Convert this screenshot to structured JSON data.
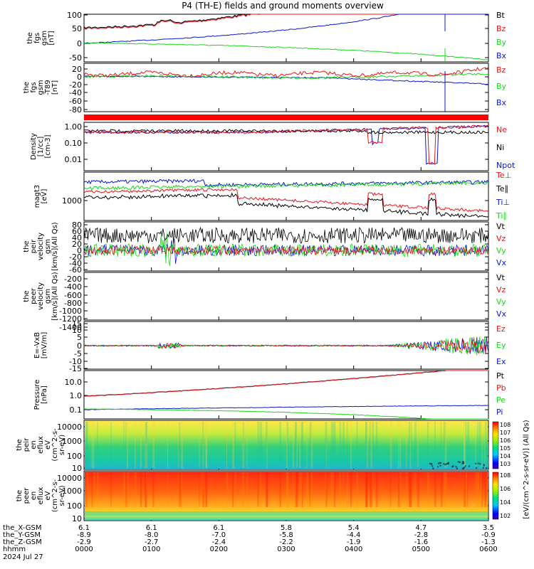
{
  "chart_data": {
    "type": "line",
    "title": "P4 (TH-E) fields and ground moments overview",
    "colors": {
      "black": "#000000",
      "red": "#e8141a",
      "green": "#18d818",
      "blue": "#0a16d0",
      "bar": "#ff0000"
    },
    "panels": [
      {
        "id": "p1",
        "ylabel": [
          "the",
          "fgs",
          "gsm",
          "[nT]"
        ],
        "ticks": [
          "100",
          "50",
          "0",
          "-50"
        ],
        "legend": [
          {
            "t": "Bt",
            "c": "black"
          },
          {
            "t": "Bz",
            "c": "red"
          },
          {
            "t": "By",
            "c": "green"
          },
          {
            "t": "Bx",
            "c": "blue"
          }
        ]
      },
      {
        "id": "p2",
        "ylabel": [
          "the",
          "fgs",
          "gsm",
          "-T89",
          "[nT]"
        ],
        "ticks": [
          "20",
          "0",
          "-20",
          "-40",
          "-60",
          "-80"
        ],
        "legend": [
          {
            "t": "Bz",
            "c": "red"
          },
          {
            "t": "By",
            "c": "green"
          },
          {
            "t": "Bx",
            "c": "blue"
          }
        ]
      },
      {
        "id": "p3",
        "ylabel": [
          "Density",
          "[1/cc]",
          "[cm-3]"
        ],
        "ticks": [
          "1.00",
          "0.10",
          "0.01"
        ],
        "legend": [
          {
            "t": "Ne",
            "c": "red"
          },
          {
            "t": "Ni",
            "c": "black"
          },
          {
            "t": "Npot",
            "c": "blue"
          }
        ]
      },
      {
        "id": "p4",
        "ylabel": [
          "magt3",
          "[eV]"
        ],
        "ticks": [
          "1000"
        ],
        "legend": [
          {
            "t": "Te⊥",
            "c": "red"
          },
          {
            "t": "Te∥",
            "c": "black"
          },
          {
            "t": "Ti⊥",
            "c": "blue"
          },
          {
            "t": "Ti∥",
            "c": "green"
          }
        ]
      },
      {
        "id": "p5",
        "ylabel": [
          "the",
          "peir",
          "velocity",
          "gsm",
          "[km/s](All Qs)"
        ],
        "ticks": [
          "80",
          "60",
          "40",
          "20",
          "0",
          "-20",
          "-40",
          "-60"
        ],
        "legend": [
          {
            "t": "Vt",
            "c": "black"
          },
          {
            "t": "Vz",
            "c": "red"
          },
          {
            "t": "Vy",
            "c": "green"
          },
          {
            "t": "Vx",
            "c": "blue"
          }
        ]
      },
      {
        "id": "p6",
        "ylabel": [
          "the",
          "peer",
          "velocity",
          "gsm",
          "[km/s](All Qs)"
        ],
        "ticks": [
          "-200",
          "-400",
          "-600",
          "-800",
          "-1000",
          "-1200",
          "-1400"
        ],
        "legend": [
          {
            "t": "Vt",
            "c": "black"
          },
          {
            "t": "Vz",
            "c": "red"
          },
          {
            "t": "Vy",
            "c": "green"
          },
          {
            "t": "Vx",
            "c": "blue"
          }
        ]
      },
      {
        "id": "p7",
        "ylabel": [
          "E=-VxB",
          "[mV/m]"
        ],
        "ticks": [
          "15",
          "10",
          "5",
          "0",
          "-5",
          "-10",
          "-15"
        ],
        "legend": [
          {
            "t": "Ez",
            "c": "red"
          },
          {
            "t": "Ey",
            "c": "green"
          },
          {
            "t": "Ex",
            "c": "blue"
          }
        ]
      },
      {
        "id": "p8",
        "ylabel": [
          "Pressure",
          "[nPa]"
        ],
        "ticks": [
          "10.0",
          "1.0",
          "0.1"
        ],
        "legend": [
          {
            "t": "Pt",
            "c": "black"
          },
          {
            "t": "Pb",
            "c": "red"
          },
          {
            "t": "Pe",
            "c": "green"
          },
          {
            "t": "Pi",
            "c": "blue"
          }
        ]
      },
      {
        "id": "p9",
        "ylabel": [
          "the",
          "peir",
          "en",
          "eflux",
          "eV",
          "(cm^2-s-",
          "sr-eV)"
        ],
        "ticks": [
          "10000",
          "1000",
          "100",
          "10"
        ]
      },
      {
        "id": "p10",
        "ylabel": [
          "the",
          "peer",
          "en",
          "eflux",
          "eV",
          "(cm^2-s-",
          "sr-eV)"
        ],
        "ticks": [
          "10000",
          "1000",
          "100",
          "10"
        ]
      }
    ],
    "colorbar_ticks": [
      "10^8",
      "10^7",
      "10^6",
      "10^5",
      "10^4",
      "10^3"
    ],
    "colorbar_ticks_lower": [
      "10^8",
      "10^6",
      "10^4",
      "10^2"
    ],
    "colorbar_label": "[eV/(cm^2-s-sr-eV)] (All Qs)",
    "axis_rows": [
      {
        "label": "the_X-GSM",
        "values": [
          "6.1",
          "6.1",
          "6.1",
          "5.8",
          "5.4",
          "4.7",
          "3.5"
        ]
      },
      {
        "label": "the_Y-GSM",
        "values": [
          "-8.9",
          "-8.0",
          "-7.0",
          "-5.8",
          "-4.4",
          "-2.8",
          "-0.9"
        ]
      },
      {
        "label": "the_Z-GSM",
        "values": [
          "-2.9",
          "-2.7",
          "-2.4",
          "-2.2",
          "-1.9",
          "-1.6",
          "-1.3"
        ]
      },
      {
        "label": "hhmm",
        "values": [
          "0000",
          "0100",
          "0200",
          "0300",
          "0400",
          "0500",
          "0600"
        ]
      }
    ],
    "date_label": "2024 Jul 27",
    "x_range_hhmm": [
      "0000",
      "0600"
    ]
  }
}
